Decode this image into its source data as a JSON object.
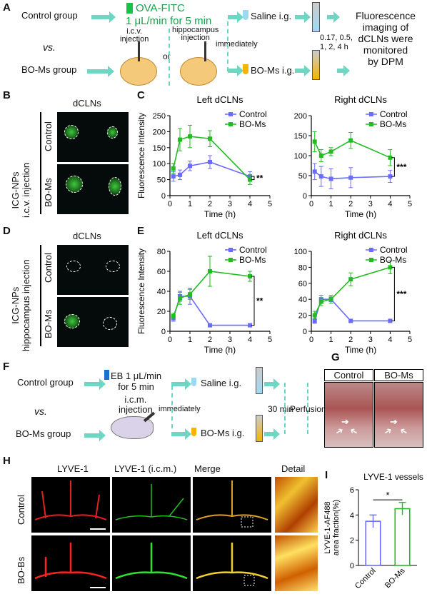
{
  "panels": {
    "A": {
      "letter": "A",
      "control_group": "Control group",
      "vs": "vs.",
      "bo_group": "BO-Ms group",
      "ova_label": "OVA-FITC",
      "ova_rate": "1 μL/min for 5 min",
      "icv": "i.c.v.\ninjection",
      "or": "or",
      "hippo": "hippocampus\ninjection",
      "immediately": "immediately",
      "saline": "Saline i.g.",
      "boms_ig": "BO-Ms i.g.",
      "times": "0.17, 0.5,\n1, 2, 4 h",
      "result": "Fluorescence\nimaging of\ndCLNs were\nmonitored\nby DPM"
    },
    "B": {
      "letter": "B",
      "title": "dCLNs",
      "row1": "Control",
      "row2": "BO-Ms",
      "side": "ICG-NPs\ni.c.v. injection"
    },
    "D": {
      "letter": "D",
      "title": "dCLNs",
      "row1": "Control",
      "row2": "BO-Ms",
      "side": "ICG-NPs\nhippocampus injection"
    },
    "F": {
      "letter": "F",
      "control_group": "Control group",
      "vs": "vs.",
      "bo_group": "BO-Ms group",
      "eb": "EB 1 μL/min\nfor 5 min",
      "icm": "i.c.m.\ninjection",
      "immediately": "immediately",
      "saline": "Saline i.g.",
      "boms_ig": "BO-Ms i.g.",
      "wait": "30 min",
      "perfusion": "Perfusion"
    },
    "G": {
      "letter": "G",
      "col1": "Control",
      "col2": "BO-Ms"
    },
    "H": {
      "letter": "H",
      "c1": "LYVE-1",
      "c2": "LYVE-1 (i.c.m.)",
      "c3": "Merge",
      "c4": "Detail",
      "r1": "Control",
      "r2": "BO-Bs"
    },
    "I": {
      "letter": "I"
    }
  },
  "colors": {
    "control": "#6b6bff",
    "boms": "#22bb22",
    "arrow": "#6fd6c4"
  },
  "chart_data": [
    {
      "id": "C-left",
      "type": "line",
      "panel": "C",
      "title": "Left dCLNs",
      "xlabel": "Time (h)",
      "ylabel": "Fluorescence Intensity",
      "xlim": [
        0,
        5
      ],
      "ylim": [
        0,
        250
      ],
      "xticks": [
        0,
        1,
        2,
        3,
        4,
        5
      ],
      "yticks": [
        0,
        50,
        100,
        150,
        200,
        250
      ],
      "series": [
        {
          "name": "Control",
          "x": [
            0.17,
            0.5,
            1,
            2,
            4
          ],
          "y": [
            60,
            65,
            93,
            105,
            60
          ],
          "err": [
            15,
            15,
            15,
            20,
            15
          ]
        },
        {
          "name": "BO-Ms",
          "x": [
            0.17,
            0.5,
            1,
            2,
            4
          ],
          "y": [
            85,
            175,
            185,
            178,
            50
          ],
          "err": [
            15,
            35,
            35,
            25,
            15
          ]
        }
      ],
      "significance": "**"
    },
    {
      "id": "C-right",
      "type": "line",
      "panel": "C",
      "title": "Right dCLNs",
      "xlabel": "Time (h)",
      "ylabel": "",
      "xlim": [
        0,
        5
      ],
      "ylim": [
        0,
        200
      ],
      "xticks": [
        0,
        1,
        2,
        3,
        4,
        5
      ],
      "yticks": [
        0,
        50,
        100,
        150,
        200
      ],
      "series": [
        {
          "name": "Control",
          "x": [
            0.17,
            0.5,
            1,
            2,
            4
          ],
          "y": [
            60,
            48,
            42,
            45,
            48
          ],
          "err": [
            20,
            25,
            25,
            25,
            15
          ]
        },
        {
          "name": "BO-Ms",
          "x": [
            0.17,
            0.5,
            1,
            2,
            4
          ],
          "y": [
            135,
            100,
            110,
            138,
            95
          ],
          "err": [
            25,
            15,
            10,
            20,
            20
          ]
        }
      ],
      "significance": "***"
    },
    {
      "id": "E-left",
      "type": "line",
      "panel": "E",
      "title": "Left dCLNs",
      "xlabel": "Time (h)",
      "ylabel": "Fluorescence Intensity",
      "xlim": [
        0,
        5
      ],
      "ylim": [
        0,
        80
      ],
      "xticks": [
        0,
        1,
        2,
        3,
        4,
        5
      ],
      "yticks": [
        0,
        20,
        40,
        60,
        80
      ],
      "series": [
        {
          "name": "Control",
          "x": [
            0.17,
            0.5,
            1,
            2,
            4
          ],
          "y": [
            13,
            35,
            35,
            6,
            6
          ],
          "err": [
            3,
            5,
            8,
            1,
            1
          ]
        },
        {
          "name": "BO-Ms",
          "x": [
            0.17,
            0.5,
            1,
            2,
            4
          ],
          "y": [
            15,
            33,
            37,
            60,
            55
          ],
          "err": [
            3,
            6,
            5,
            15,
            5
          ]
        }
      ],
      "significance": "**"
    },
    {
      "id": "E-right",
      "type": "line",
      "panel": "E",
      "title": "Right dCLNs",
      "xlabel": "Time (h)",
      "ylabel": "",
      "xlim": [
        0,
        5
      ],
      "ylim": [
        0,
        100
      ],
      "xticks": [
        0,
        1,
        2,
        3,
        4,
        5
      ],
      "yticks": [
        0,
        20,
        40,
        60,
        80,
        100
      ],
      "series": [
        {
          "name": "Control",
          "x": [
            0.17,
            0.5,
            1,
            2,
            4
          ],
          "y": [
            13,
            40,
            40,
            13,
            13
          ],
          "err": [
            3,
            5,
            3,
            1,
            1
          ]
        },
        {
          "name": "BO-Ms",
          "x": [
            0.17,
            0.5,
            1,
            2,
            4
          ],
          "y": [
            20,
            37,
            40,
            65,
            80
          ],
          "err": [
            5,
            5,
            5,
            8,
            8
          ]
        }
      ],
      "significance": "***"
    },
    {
      "id": "I",
      "type": "bar",
      "panel": "I",
      "title": "LYVE-1 vessels",
      "ylabel": "LYVE-1-AF488\narea fraction(%)",
      "categories": [
        "Control",
        "BO-Ms"
      ],
      "values": [
        3.5,
        4.5
      ],
      "err": [
        0.5,
        0.5
      ],
      "ylim": [
        0,
        6
      ],
      "yticks": [
        0,
        2,
        4,
        6
      ],
      "significance": "*"
    }
  ]
}
